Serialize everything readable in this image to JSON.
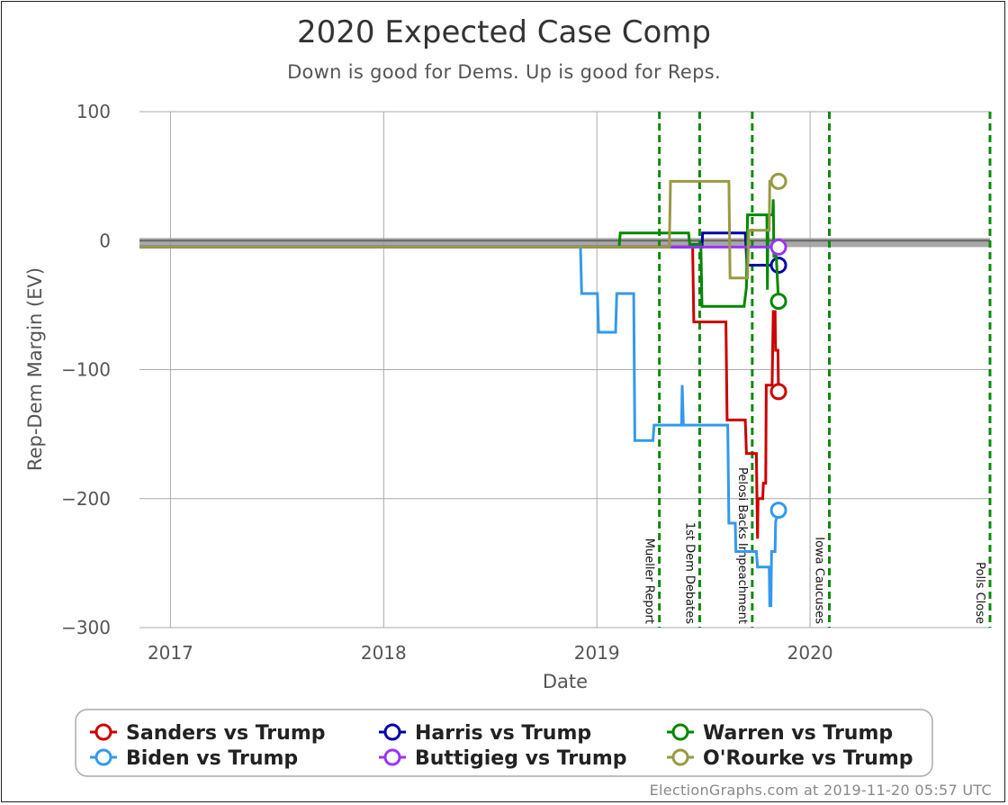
{
  "chart_data": {
    "type": "line",
    "title": "2020 Expected Case Comp",
    "subtitle": "Down is good for Dems. Up is good for Reps.",
    "xlabel": "Date",
    "ylabel": "Rep-Dem Margin (EV)",
    "xlim": [
      "2016-11-09",
      "2020-11-04"
    ],
    "ylim": [
      -300,
      100
    ],
    "x_ticks": [
      {
        "date": "2017-01-01",
        "label": "2017"
      },
      {
        "date": "2018-01-01",
        "label": "2018"
      },
      {
        "date": "2019-01-01",
        "label": "2019"
      },
      {
        "date": "2020-01-01",
        "label": "2020"
      }
    ],
    "y_ticks": [
      100,
      0,
      -100,
      -200,
      -300
    ],
    "y_tick_labels": [
      "100",
      "0",
      "−100",
      "−200",
      "−300"
    ],
    "grid": true,
    "reference_band": {
      "from": -5,
      "to": 2
    },
    "events": [
      {
        "label": "Mueller Report",
        "date": "2019-04-18"
      },
      {
        "label": "1st Dem Debates",
        "date": "2019-06-26"
      },
      {
        "label": "Pelosi Backs Impeachment",
        "date": "2019-09-24"
      },
      {
        "label": "Iowa Caucuses",
        "date": "2020-02-03"
      },
      {
        "label": "Polls Close",
        "date": "2020-11-04"
      }
    ],
    "legend_position": "bottom",
    "series": [
      {
        "name": "Sanders vs Trump",
        "color": "#cc0000",
        "points": [
          [
            "2016-11-09",
            -5
          ],
          [
            "2019-06-14",
            -5
          ],
          [
            "2019-06-16",
            -63
          ],
          [
            "2019-08-10",
            -63
          ],
          [
            "2019-08-12",
            -139
          ],
          [
            "2019-09-12",
            -139
          ],
          [
            "2019-09-14",
            -165
          ],
          [
            "2019-10-01",
            -165
          ],
          [
            "2019-10-03",
            -231
          ],
          [
            "2019-10-04",
            -200
          ],
          [
            "2019-10-12",
            -200
          ],
          [
            "2019-10-13",
            -188
          ],
          [
            "2019-10-17",
            -188
          ],
          [
            "2019-10-18",
            -112
          ],
          [
            "2019-10-28",
            -112
          ],
          [
            "2019-10-30",
            -55
          ],
          [
            "2019-11-02",
            -55
          ],
          [
            "2019-11-03",
            -85
          ],
          [
            "2019-11-07",
            -85
          ],
          [
            "2019-11-08",
            -117
          ]
        ]
      },
      {
        "name": "Harris vs Trump",
        "color": "#0000aa",
        "points": [
          [
            "2016-11-09",
            -5
          ],
          [
            "2019-06-30",
            -5
          ],
          [
            "2019-07-01",
            6
          ],
          [
            "2019-09-12",
            6
          ],
          [
            "2019-09-15",
            -19
          ],
          [
            "2019-11-08",
            -19
          ]
        ]
      },
      {
        "name": "Warren vs Trump",
        "color": "#008800",
        "points": [
          [
            "2016-11-09",
            -5
          ],
          [
            "2019-02-08",
            -5
          ],
          [
            "2019-02-10",
            6
          ],
          [
            "2019-06-07",
            6
          ],
          [
            "2019-06-09",
            -3
          ],
          [
            "2019-06-28",
            -3
          ],
          [
            "2019-06-30",
            -51
          ],
          [
            "2019-09-10",
            -51
          ],
          [
            "2019-09-14",
            -36
          ],
          [
            "2019-09-16",
            20
          ],
          [
            "2019-10-19",
            20
          ],
          [
            "2019-10-20",
            -38
          ],
          [
            "2019-10-21",
            20
          ],
          [
            "2019-10-29",
            20
          ],
          [
            "2019-10-30",
            32
          ],
          [
            "2019-10-31",
            -12
          ],
          [
            "2019-11-04",
            -12
          ],
          [
            "2019-11-08",
            -47
          ]
        ]
      },
      {
        "name": "Biden vs Trump",
        "color": "#3399ee",
        "points": [
          [
            "2016-11-09",
            -5
          ],
          [
            "2018-12-04",
            -5
          ],
          [
            "2018-12-06",
            -41
          ],
          [
            "2019-01-02",
            -41
          ],
          [
            "2019-01-04",
            -71
          ],
          [
            "2019-02-02",
            -71
          ],
          [
            "2019-02-04",
            -41
          ],
          [
            "2019-03-05",
            -41
          ],
          [
            "2019-03-07",
            -155
          ],
          [
            "2019-04-07",
            -155
          ],
          [
            "2019-04-09",
            -143
          ],
          [
            "2019-05-26",
            -143
          ],
          [
            "2019-05-27",
            -112
          ],
          [
            "2019-05-29",
            -143
          ],
          [
            "2019-08-13",
            -143
          ],
          [
            "2019-08-15",
            -219
          ],
          [
            "2019-08-26",
            -219
          ],
          [
            "2019-08-27",
            -241
          ],
          [
            "2019-10-01",
            -241
          ],
          [
            "2019-10-03",
            -253
          ],
          [
            "2019-10-23",
            -253
          ],
          [
            "2019-10-24",
            -283
          ],
          [
            "2019-10-26",
            -283
          ],
          [
            "2019-10-27",
            -241
          ],
          [
            "2019-11-02",
            -241
          ],
          [
            "2019-11-03",
            -218
          ],
          [
            "2019-11-08",
            -209
          ]
        ]
      },
      {
        "name": "Buttigieg vs Trump",
        "color": "#9933ff",
        "points": [
          [
            "2016-11-09",
            -5
          ],
          [
            "2019-06-28",
            -5
          ],
          [
            "2019-07-01",
            -5
          ],
          [
            "2019-11-08",
            -5
          ]
        ]
      },
      {
        "name": "O'Rourke vs Trump",
        "color": "#999944",
        "points": [
          [
            "2016-11-09",
            -5
          ],
          [
            "2019-05-05",
            -5
          ],
          [
            "2019-05-07",
            46
          ],
          [
            "2019-08-15",
            46
          ],
          [
            "2019-08-17",
            -29
          ],
          [
            "2019-09-16",
            -29
          ],
          [
            "2019-09-18",
            8
          ],
          [
            "2019-10-23",
            8
          ],
          [
            "2019-10-24",
            46
          ],
          [
            "2019-11-08",
            46
          ]
        ]
      }
    ]
  },
  "credit": "ElectionGraphs.com at 2019-11-20 05:57 UTC"
}
